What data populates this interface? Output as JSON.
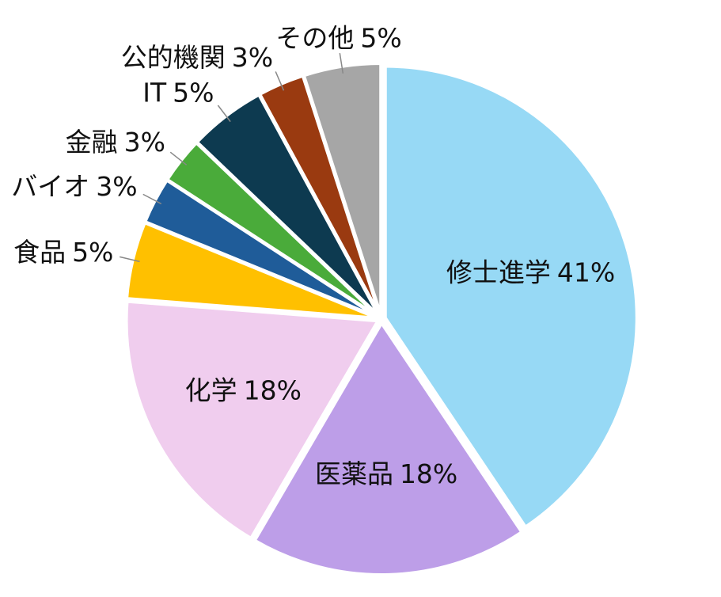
{
  "chart_data": {
    "type": "pie",
    "categories": [
      "修士進学",
      "医薬品",
      "化学",
      "食品",
      "バイオ",
      "金融",
      "IT",
      "公的機関",
      "その他"
    ],
    "values": [
      41,
      18,
      18,
      5,
      3,
      3,
      5,
      3,
      5
    ],
    "value_labels": [
      "41%",
      "18%",
      "18%",
      "5%",
      "3%",
      "3%",
      "5%",
      "3%",
      "5%"
    ],
    "colors": [
      "#97d9f5",
      "#bd9ee8",
      "#f0cdee",
      "#ffc000",
      "#1f5c99",
      "#4aab3a",
      "#0d3a50",
      "#9a3a10",
      "#a6a6a6"
    ]
  }
}
